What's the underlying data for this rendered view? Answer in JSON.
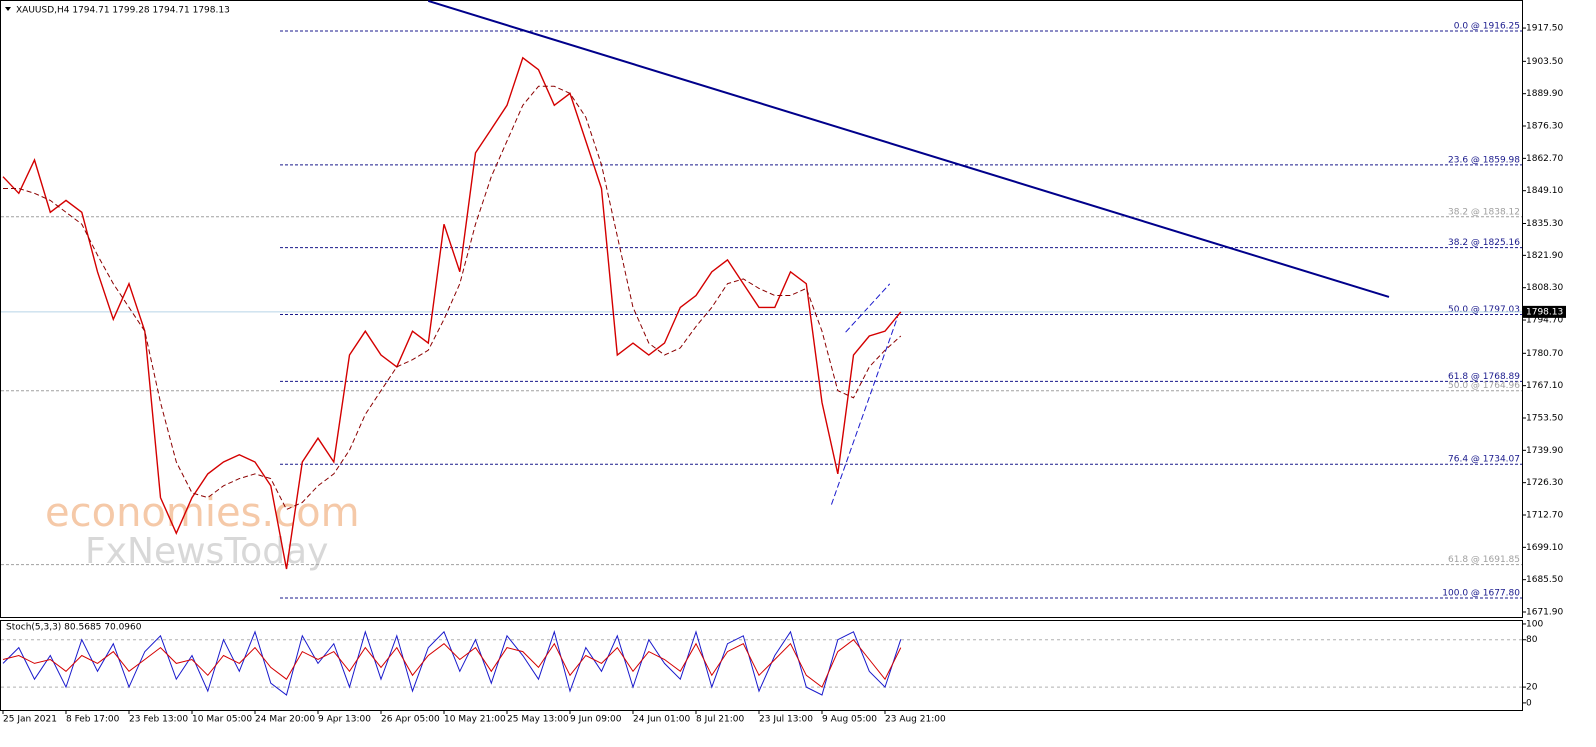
{
  "chart_data": [
    {
      "type": "line",
      "title": "XAUUSD,H4  1794.71 1799.28 1794.71 1798.13",
      "watermark": [
        "economies.com",
        "FxNewsToday"
      ],
      "ylim": [
        1669.8,
        1929.3
      ],
      "yticks": [
        {
          "value": 1917.5,
          "label": "1917.50"
        },
        {
          "value": 1903.5,
          "label": "1903.50"
        },
        {
          "value": 1889.9,
          "label": "1889.90"
        },
        {
          "value": 1876.3,
          "label": "1876.30"
        },
        {
          "value": 1862.7,
          "label": "1862.70"
        },
        {
          "value": 1849.1,
          "label": "1849.10"
        },
        {
          "value": 1835.3,
          "label": "1835.30"
        },
        {
          "value": 1821.9,
          "label": "1821.90"
        },
        {
          "value": 1808.3,
          "label": "1808.30"
        },
        {
          "value": 1794.7,
          "label": "1794.70"
        },
        {
          "value": 1780.7,
          "label": "1780.70"
        },
        {
          "value": 1767.1,
          "label": "1767.10"
        },
        {
          "value": 1753.5,
          "label": "1753.50"
        },
        {
          "value": 1739.9,
          "label": "1739.90"
        },
        {
          "value": 1726.3,
          "label": "1726.30"
        },
        {
          "value": 1712.7,
          "label": "1712.70"
        },
        {
          "value": 1699.1,
          "label": "1699.10"
        },
        {
          "value": 1685.5,
          "label": "1685.50"
        },
        {
          "value": 1671.9,
          "label": "1671.90"
        }
      ],
      "series": [
        {
          "name": "Close",
          "color": "#d40000",
          "values": [
            1855,
            1848,
            1862,
            1840,
            1845,
            1840,
            1815,
            1795,
            1810,
            1790,
            1720,
            1705,
            1720,
            1730,
            1735,
            1738,
            1735,
            1725,
            1690,
            1735,
            1745,
            1735,
            1780,
            1790,
            1780,
            1775,
            1790,
            1785,
            1835,
            1815,
            1865,
            1875,
            1885,
            1905,
            1900,
            1885,
            1890,
            1870,
            1850,
            1780,
            1785,
            1780,
            1785,
            1800,
            1805,
            1815,
            1820,
            1810,
            1800,
            1800,
            1815,
            1810,
            1760,
            1730,
            1780,
            1788,
            1790,
            1798.13
          ]
        },
        {
          "name": "MA",
          "color": "#8b0000",
          "values": [
            1850,
            1850,
            1848,
            1845,
            1840,
            1835,
            1822,
            1810,
            1800,
            1790,
            1760,
            1735,
            1722,
            1720,
            1725,
            1728,
            1730,
            1728,
            1715,
            1718,
            1725,
            1730,
            1740,
            1755,
            1765,
            1775,
            1778,
            1782,
            1795,
            1810,
            1835,
            1855,
            1870,
            1885,
            1893,
            1893,
            1890,
            1880,
            1860,
            1830,
            1800,
            1785,
            1780,
            1783,
            1792,
            1800,
            1810,
            1812,
            1808,
            1805,
            1805,
            1808,
            1790,
            1765,
            1762,
            1775,
            1782,
            1788
          ]
        }
      ],
      "fibonacci": [
        {
          "label": "0.0 @ 1916.25",
          "value": 1916.25,
          "color": "#1a1a8c"
        },
        {
          "label": "23.6 @ 1859.98",
          "value": 1859.98,
          "color": "#1a1a8c"
        },
        {
          "label": "38.2 @ 1838.12",
          "value": 1838.12,
          "color": "#a0a0a0"
        },
        {
          "label": "38.2 @ 1825.16",
          "value": 1825.16,
          "color": "#1a1a8c"
        },
        {
          "label": "50.0 @ 1797.03",
          "value": 1797.03,
          "color": "#1a1a8c"
        },
        {
          "label": "61.8 @ 1768.89",
          "value": 1768.89,
          "color": "#1a1a8c"
        },
        {
          "label": "50.0 @ 1764.96",
          "value": 1764.96,
          "color": "#a0a0a0"
        },
        {
          "label": "76.4 @ 1734.07",
          "value": 1734.07,
          "color": "#1a1a8c"
        },
        {
          "label": "61.8 @ 1691.85",
          "value": 1691.85,
          "color": "#a0a0a0"
        },
        {
          "label": "100.0 @ 1677.80",
          "value": 1677.8,
          "color": "#1a1a8c"
        }
      ],
      "trendlines": [
        {
          "x": [
            27,
            88
          ],
          "y": [
            1928.9,
            1804.4
          ],
          "color": "#00008b",
          "dashed": false
        },
        {
          "x": [
            52.6,
            56.8
          ],
          "y": [
            1717.1,
            1796.0
          ],
          "color": "#1a1acc",
          "dashed": true
        },
        {
          "x": [
            53.5,
            56.3
          ],
          "y": [
            1789.6,
            1809.9
          ],
          "color": "#1a1acc",
          "dashed": true
        }
      ]
    },
    {
      "type": "line",
      "title": "Stoch(5,3,3) 80.5685 70.0960",
      "categories": [
        "25 Jan 2021",
        null,
        null,
        null,
        "8 Feb 17:00",
        null,
        null,
        null,
        "23 Feb 13:00",
        null,
        null,
        null,
        "10 Mar 05:00",
        null,
        null,
        null,
        "24 Mar 20:00",
        null,
        null,
        null,
        "9 Apr 13:00",
        null,
        null,
        null,
        "26 Apr 05:00",
        null,
        null,
        null,
        "10 May 21:00",
        null,
        null,
        null,
        "25 May 13:00",
        null,
        null,
        null,
        "9 Jun 09:00",
        null,
        null,
        null,
        "24 Jun 01:00",
        null,
        null,
        null,
        "8 Jul 21:00",
        null,
        null,
        null,
        "23 Jul 13:00",
        null,
        null,
        null,
        "9 Aug 05:00",
        null,
        null,
        null,
        "23 Aug 21:00",
        null
      ],
      "ylim": [
        -9,
        105
      ],
      "yticks": [
        0,
        20,
        80,
        100
      ],
      "levels": [
        20,
        80
      ],
      "series": [
        {
          "name": "%K",
          "color": "#1a1acc",
          "values": [
            50,
            70,
            30,
            60,
            20,
            80,
            40,
            75,
            20,
            65,
            85,
            30,
            60,
            15,
            80,
            40,
            90,
            25,
            10,
            85,
            50,
            75,
            20,
            90,
            30,
            85,
            15,
            70,
            90,
            40,
            80,
            25,
            85,
            60,
            30,
            90,
            15,
            70,
            40,
            85,
            20,
            80,
            50,
            30,
            90,
            20,
            75,
            85,
            15,
            60,
            90,
            20,
            10,
            80,
            90,
            40,
            20,
            80.5685
          ]
        },
        {
          "name": "%D",
          "color": "#d40000",
          "values": [
            55,
            60,
            50,
            55,
            40,
            60,
            50,
            65,
            40,
            55,
            70,
            50,
            55,
            35,
            60,
            50,
            70,
            45,
            30,
            65,
            55,
            65,
            40,
            70,
            45,
            70,
            35,
            60,
            75,
            55,
            70,
            40,
            70,
            65,
            45,
            75,
            35,
            60,
            50,
            70,
            40,
            65,
            55,
            40,
            75,
            35,
            65,
            75,
            35,
            55,
            75,
            35,
            20,
            65,
            80,
            55,
            30,
            70.096
          ]
        }
      ]
    }
  ]
}
